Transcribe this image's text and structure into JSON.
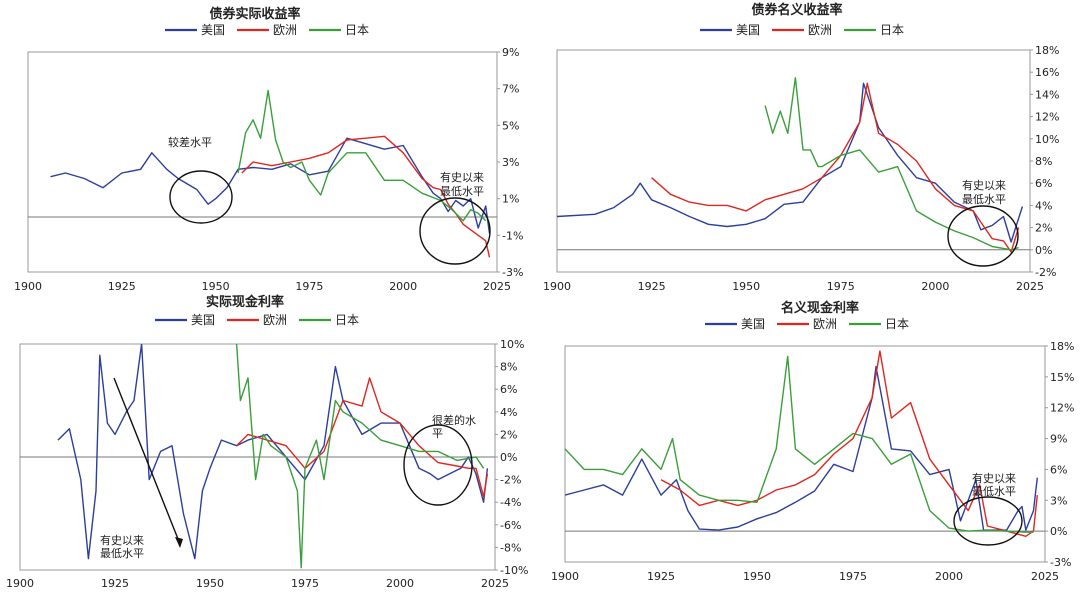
{
  "chart_data": [
    {
      "type": "line",
      "title": "债券实际收益率",
      "xlabel": "",
      "ylabel": "",
      "xlim": [
        1900,
        2025
      ],
      "ylim": [
        -3,
        9
      ],
      "xticks": [
        "1900",
        "1925",
        "1950",
        "1975",
        "2000",
        "2025"
      ],
      "yticks": [
        "-3%",
        "-1%",
        "1%",
        "3%",
        "5%",
        "7%",
        "9%"
      ],
      "legend": "top-center",
      "grid": false,
      "series": [
        {
          "name": "美国",
          "color": "#2c3e9e",
          "x": [
            1906,
            1910,
            1915,
            1920,
            1925,
            1930,
            1933,
            1937,
            1940,
            1945,
            1948,
            1950,
            1953,
            1956,
            1960,
            1965,
            1970,
            1975,
            1980,
            1985,
            1990,
            1995,
            2000,
            2005,
            2008,
            2010,
            2012,
            2014,
            2016,
            2018,
            2020,
            2022,
            2023
          ],
          "y": [
            2.2,
            2.4,
            2.1,
            1.6,
            2.4,
            2.6,
            3.5,
            2.6,
            2.1,
            1.5,
            0.7,
            1.0,
            1.6,
            2.6,
            2.7,
            2.6,
            2.9,
            2.3,
            2.5,
            4.3,
            4.0,
            3.7,
            3.9,
            2.2,
            1.3,
            1.0,
            0.3,
            0.9,
            0.6,
            1.0,
            -0.6,
            0.6,
            -0.9
          ]
        },
        {
          "name": "欧洲",
          "color": "#e0261f",
          "x": [
            1957,
            1960,
            1965,
            1970,
            1975,
            1980,
            1985,
            1990,
            1995,
            2000,
            2005,
            2008,
            2010,
            2012,
            2014,
            2016,
            2018,
            2020,
            2022,
            2023
          ],
          "y": [
            2.4,
            3.0,
            2.8,
            3.0,
            3.2,
            3.5,
            4.2,
            4.3,
            4.4,
            3.5,
            2.1,
            1.6,
            1.5,
            0.7,
            0.2,
            -0.4,
            -0.7,
            -1.0,
            -1.3,
            -2.2
          ]
        },
        {
          "name": "日本",
          "color": "#3a9f3a",
          "x": [
            1956,
            1958,
            1960,
            1962,
            1964,
            1966,
            1968,
            1970,
            1973,
            1975,
            1978,
            1980,
            1985,
            1990,
            1995,
            2000,
            2005,
            2010,
            2013,
            2016,
            2018,
            2020,
            2022
          ],
          "y": [
            2.4,
            4.6,
            5.3,
            4.3,
            6.9,
            4.2,
            3.0,
            2.7,
            3.0,
            2.0,
            1.2,
            2.4,
            3.5,
            3.5,
            2.0,
            2.0,
            1.3,
            0.9,
            0.4,
            -0.2,
            0.4,
            0.2,
            -0.2
          ]
        }
      ],
      "annotations": [
        "较差水平",
        "有史以来",
        "最低水平"
      ]
    },
    {
      "type": "line",
      "title": "债券名义收益率",
      "xlabel": "",
      "ylabel": "",
      "xlim": [
        1900,
        2025
      ],
      "ylim": [
        -2,
        18
      ],
      "xticks": [
        "1900",
        "1925",
        "1950",
        "1975",
        "2000",
        "2025"
      ],
      "yticks": [
        "-2%",
        "0%",
        "2%",
        "4%",
        "6%",
        "8%",
        "10%",
        "12%",
        "14%",
        "16%",
        "18%"
      ],
      "legend": "top-center",
      "grid": false,
      "series": [
        {
          "name": "美国",
          "color": "#2c3e9e",
          "x": [
            1900,
            1910,
            1915,
            1920,
            1922,
            1925,
            1930,
            1935,
            1940,
            1945,
            1950,
            1955,
            1960,
            1965,
            1970,
            1975,
            1980,
            1981,
            1985,
            1990,
            1995,
            2000,
            2005,
            2010,
            2012,
            2015,
            2018,
            2020,
            2023
          ],
          "y": [
            3.0,
            3.2,
            3.8,
            5.0,
            6.0,
            4.5,
            3.8,
            3.0,
            2.3,
            2.1,
            2.3,
            2.8,
            4.1,
            4.3,
            6.5,
            7.5,
            11.5,
            15.0,
            11.0,
            8.5,
            6.5,
            6.0,
            4.3,
            3.5,
            1.8,
            2.2,
            3.0,
            0.7,
            3.9
          ]
        },
        {
          "name": "欧洲",
          "color": "#e0261f",
          "x": [
            1925,
            1930,
            1935,
            1940,
            1945,
            1950,
            1955,
            1960,
            1965,
            1970,
            1975,
            1980,
            1982,
            1985,
            1990,
            1995,
            2000,
            2005,
            2010,
            2012,
            2015,
            2018,
            2020,
            2022
          ],
          "y": [
            6.5,
            5.0,
            4.3,
            4.0,
            4.0,
            3.5,
            4.5,
            5.0,
            5.5,
            6.5,
            8.5,
            11.5,
            15.0,
            10.5,
            9.5,
            8.0,
            5.5,
            4.0,
            3.5,
            2.5,
            1.0,
            0.8,
            -0.2,
            2.0
          ]
        },
        {
          "name": "日本",
          "color": "#3a9f3a",
          "x": [
            1955,
            1957,
            1959,
            1961,
            1963,
            1965,
            1967,
            1969,
            1970,
            1975,
            1980,
            1985,
            1990,
            1995,
            2000,
            2005,
            2010,
            2015,
            2020,
            2022
          ],
          "y": [
            13.0,
            10.5,
            12.5,
            10.5,
            15.5,
            9.0,
            9.0,
            7.5,
            7.5,
            8.5,
            9.0,
            7.0,
            7.5,
            3.5,
            2.5,
            1.7,
            1.1,
            0.3,
            0.0,
            0.2
          ]
        }
      ],
      "annotations": [
        "有史以来",
        "最低水平"
      ]
    },
    {
      "type": "line",
      "title": "实际现金利率",
      "xlabel": "",
      "ylabel": "",
      "xlim": [
        1900,
        2025
      ],
      "ylim": [
        -10,
        10
      ],
      "xticks": [
        "1900",
        "1925",
        "1950",
        "1975",
        "2000",
        "2025"
      ],
      "yticks": [
        "-10%",
        "-8%",
        "-6%",
        "-4%",
        "-2%",
        "0%",
        "2%",
        "4%",
        "6%",
        "8%",
        "10%"
      ],
      "legend": "top-center",
      "grid": false,
      "series": [
        {
          "name": "美国",
          "color": "#2c3e9e",
          "x": [
            1910,
            1913,
            1916,
            1918,
            1920,
            1921,
            1923,
            1925,
            1928,
            1930,
            1932,
            1934,
            1937,
            1940,
            1943,
            1946,
            1948,
            1950,
            1953,
            1957,
            1960,
            1965,
            1970,
            1975,
            1980,
            1983,
            1985,
            1990,
            1995,
            2000,
            2005,
            2008,
            2010,
            2013,
            2016,
            2018,
            2020,
            2022,
            2023
          ],
          "y": [
            1.5,
            2.5,
            -2.0,
            -9.0,
            -3.0,
            9.0,
            3.0,
            2.0,
            4.0,
            5.0,
            10.0,
            -2.0,
            0.5,
            1.0,
            -5.0,
            -9.0,
            -3.0,
            -1.0,
            1.5,
            1.0,
            1.5,
            2.0,
            0.0,
            -2.0,
            1.0,
            8.0,
            5.0,
            2.0,
            3.0,
            3.0,
            -1.0,
            -1.5,
            -2.0,
            -1.5,
            -1.0,
            0.0,
            -1.5,
            -4.0,
            -1.0
          ]
        },
        {
          "name": "欧洲",
          "color": "#e0261f",
          "x": [
            1957,
            1960,
            1965,
            1970,
            1975,
            1980,
            1985,
            1990,
            1992,
            1995,
            2000,
            2005,
            2010,
            2015,
            2018,
            2020,
            2022,
            2023
          ],
          "y": [
            1.0,
            2.0,
            1.5,
            1.0,
            -1.0,
            0.5,
            5.0,
            4.5,
            7.0,
            4.0,
            3.0,
            1.0,
            -0.5,
            -0.8,
            -1.0,
            -1.0,
            -3.5,
            -1.5
          ]
        },
        {
          "name": "日本",
          "color": "#3a9f3a",
          "x": [
            1957,
            1958,
            1960,
            1962,
            1964,
            1966,
            1970,
            1973,
            1974,
            1975,
            1978,
            1980,
            1983,
            1985,
            1990,
            1995,
            2000,
            2005,
            2010,
            2015,
            2020,
            2022
          ],
          "y": [
            10.0,
            5.0,
            7.0,
            -2.0,
            2.0,
            1.0,
            0.0,
            -3.0,
            -9.8,
            -1.0,
            1.5,
            -2.0,
            5.0,
            4.0,
            3.0,
            1.5,
            1.0,
            0.5,
            0.5,
            -0.3,
            0.0,
            -1.0
          ]
        }
      ],
      "annotations": [
        "很差的水",
        "平",
        "有史以来",
        "最低水平"
      ]
    },
    {
      "type": "line",
      "title": "名义现金利率",
      "xlabel": "",
      "ylabel": "",
      "xlim": [
        1900,
        2025
      ],
      "ylim": [
        -3,
        18
      ],
      "xticks": [
        "1900",
        "1925",
        "1950",
        "1975",
        "2000",
        "2025"
      ],
      "yticks": [
        "-3%",
        "0%",
        "3%",
        "6%",
        "9%",
        "12%",
        "15%",
        "18%"
      ],
      "legend": "top-center",
      "grid": false,
      "series": [
        {
          "name": "美国",
          "color": "#2c3e9e",
          "x": [
            1900,
            1905,
            1910,
            1915,
            1920,
            1925,
            1929,
            1932,
            1935,
            1940,
            1945,
            1950,
            1955,
            1960,
            1965,
            1970,
            1975,
            1980,
            1981,
            1985,
            1990,
            1995,
            2000,
            2003,
            2007,
            2009,
            2015,
            2018,
            2019,
            2020,
            2022,
            2023
          ],
          "y": [
            3.5,
            4.0,
            4.5,
            3.5,
            7.0,
            3.5,
            5.0,
            2.0,
            0.2,
            0.1,
            0.4,
            1.2,
            1.8,
            2.8,
            3.9,
            6.5,
            5.8,
            13.0,
            16.0,
            8.0,
            7.8,
            5.5,
            6.0,
            1.0,
            5.0,
            0.1,
            0.1,
            2.0,
            2.4,
            0.1,
            2.0,
            5.2
          ]
        },
        {
          "name": "欧洲",
          "color": "#e0261f",
          "x": [
            1925,
            1930,
            1935,
            1940,
            1945,
            1950,
            1955,
            1960,
            1965,
            1970,
            1975,
            1980,
            1982,
            1985,
            1990,
            1995,
            2000,
            2005,
            2008,
            2010,
            2015,
            2020,
            2022,
            2023
          ],
          "y": [
            5.0,
            4.0,
            2.5,
            3.0,
            2.5,
            3.0,
            4.0,
            4.5,
            5.5,
            7.5,
            9.0,
            13.0,
            17.5,
            11.0,
            12.5,
            7.0,
            4.5,
            2.0,
            4.5,
            0.5,
            0.0,
            -0.5,
            0.0,
            3.5
          ]
        },
        {
          "name": "日本",
          "color": "#3a9f3a",
          "x": [
            1900,
            1905,
            1910,
            1915,
            1920,
            1925,
            1928,
            1930,
            1935,
            1940,
            1945,
            1950,
            1955,
            1958,
            1960,
            1965,
            1970,
            1975,
            1980,
            1985,
            1990,
            1995,
            2000,
            2005,
            2010,
            2020,
            2022
          ],
          "y": [
            8.0,
            6.0,
            6.0,
            5.5,
            8.0,
            6.0,
            9.0,
            5.0,
            3.5,
            3.0,
            3.0,
            2.8,
            8.0,
            17.0,
            8.0,
            6.5,
            8.0,
            9.5,
            9.0,
            6.5,
            7.5,
            2.0,
            0.3,
            0.0,
            0.1,
            -0.1,
            -0.1
          ]
        }
      ],
      "annotations": [
        "有史以来",
        "最低水平"
      ]
    }
  ]
}
